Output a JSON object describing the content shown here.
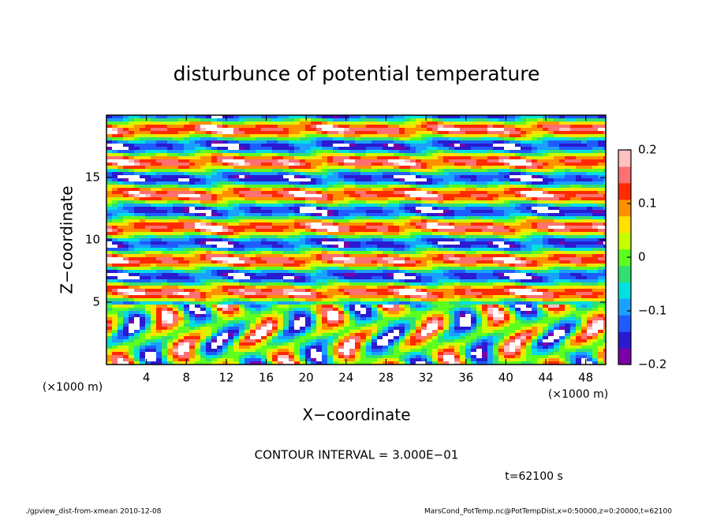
{
  "chart_data": {
    "type": "heatmap",
    "title": "disturbunce of potential temperature",
    "xlabel": "X−coordinate",
    "ylabel": "Z−coordinate",
    "xunit": "(×1000 m)",
    "yunit": "(×1000 m)",
    "xlim": [
      0,
      50
    ],
    "xticks": [
      4,
      8,
      12,
      16,
      20,
      24,
      28,
      32,
      36,
      40,
      44,
      48
    ],
    "ylim": [
      0,
      20
    ],
    "yticks": [
      5,
      10,
      15
    ],
    "clim": [
      -0.2,
      0.2
    ],
    "cticks": [
      {
        "value": -0.2,
        "label": "−0.2"
      },
      {
        "value": -0.1,
        "label": "−0.1"
      },
      0,
      0.1,
      0.2
    ],
    "colors": [
      "#7a00a8",
      "#2a1ad0",
      "#1f5cff",
      "#1aa0ff",
      "#00e0e0",
      "#30e070",
      "#5cff20",
      "#c8ff00",
      "#ffe000",
      "#ff9000",
      "#ff2a00",
      "#ff7070",
      "#ffc0c0"
    ],
    "annotation": "CONTOUR INTERVAL = 3.000E−01",
    "time_label": "t=62100 s",
    "footer_left": "./gpview_dist-from-xmean  2010-12-08",
    "footer_right": "MarsCond_PotTemp.nc@PotTempDist,x=0:50000,z=0:20000,t=62100"
  }
}
